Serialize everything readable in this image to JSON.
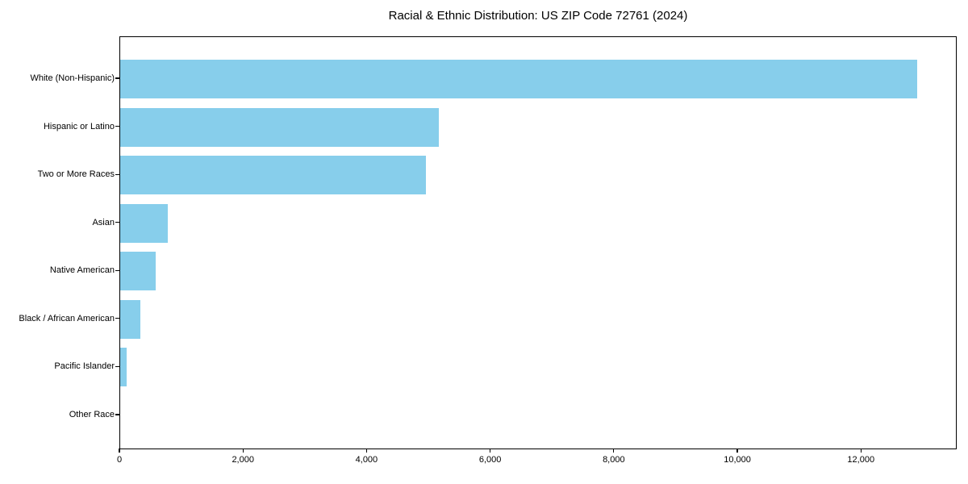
{
  "chart_data": {
    "type": "bar",
    "orientation": "horizontal",
    "title": "Racial & Ethnic Distribution: US ZIP Code 72761 (2024)",
    "categories": [
      "White (Non-Hispanic)",
      "Hispanic or Latino",
      "Two or More Races",
      "Asian",
      "Native American",
      "Black / African American",
      "Pacific Islander",
      "Other Race"
    ],
    "values": [
      12900,
      5150,
      4950,
      770,
      575,
      325,
      100,
      0
    ],
    "xlabel": "",
    "ylabel": "",
    "x_tick_values": [
      0,
      2000,
      4000,
      6000,
      8000,
      10000,
      12000
    ],
    "x_tick_labels": [
      "0",
      "2,000",
      "4,000",
      "6,000",
      "8,000",
      "10,000",
      "12,000"
    ],
    "xlim": [
      0,
      13550
    ],
    "bar_color": "#87CEEB",
    "frame_color": "#000000",
    "text_color": "#000000",
    "background_color": "#FFFFFF",
    "grid": false,
    "legend": false
  }
}
